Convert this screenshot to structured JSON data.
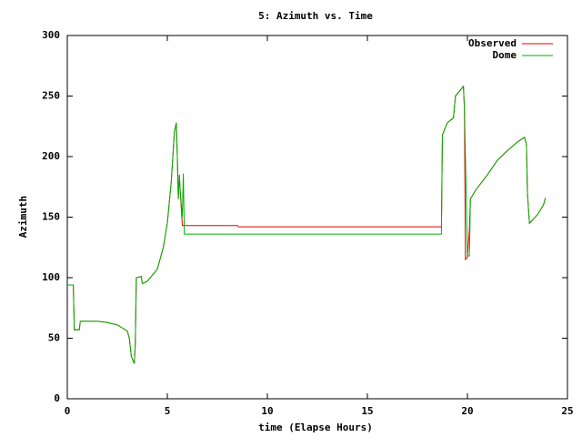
{
  "chart_data": {
    "type": "line",
    "title": "5: Azimuth vs. Time",
    "x_label": "time (Elapse Hours)",
    "y_label": "Azimuth",
    "x": [
      0,
      0.3,
      0.35,
      0.6,
      0.65,
      1.5,
      2.0,
      2.5,
      3.0,
      3.1,
      3.2,
      3.35,
      3.4,
      3.45,
      3.7,
      3.75,
      4.0,
      4.5,
      4.8,
      5.0,
      5.2,
      5.35,
      5.45,
      5.5,
      5.55,
      5.6,
      5.65,
      5.75,
      5.8,
      5.85,
      8.5,
      8.55,
      18.7,
      18.75,
      19.0,
      19.3,
      19.4,
      19.8,
      19.85,
      19.9,
      20.0,
      20.1,
      20.15,
      20.4,
      21.0,
      21.5,
      22.0,
      22.5,
      22.85,
      22.95,
      23.0,
      23.1,
      23.5,
      23.8,
      23.9
    ],
    "series": [
      {
        "name": "Observed",
        "color": "#e00000",
        "values": [
          94,
          94,
          57,
          57,
          64,
          64,
          63,
          61,
          56,
          50,
          35,
          29,
          46,
          100,
          101,
          95,
          97,
          107,
          125,
          145,
          180,
          220,
          228,
          200,
          165,
          185,
          170,
          143,
          143,
          143,
          143,
          142,
          142,
          218,
          228,
          232,
          250,
          258,
          240,
          115,
          117,
          140,
          165,
          172,
          185,
          197,
          205,
          212,
          216,
          210,
          170,
          145,
          152,
          160,
          166
        ]
      },
      {
        "name": "Dome",
        "color": "#00b000",
        "values": [
          94,
          94,
          57,
          57,
          64,
          64,
          63,
          61,
          56,
          50,
          35,
          29,
          46,
          100,
          101,
          95,
          97,
          107,
          125,
          145,
          180,
          220,
          228,
          200,
          165,
          185,
          170,
          150,
          186,
          136,
          136,
          136,
          136,
          218,
          228,
          232,
          250,
          258,
          240,
          200,
          118,
          118,
          165,
          172,
          185,
          197,
          205,
          212,
          216,
          210,
          170,
          145,
          152,
          160,
          166
        ]
      }
    ],
    "xlim": [
      0,
      25
    ],
    "ylim": [
      0,
      300
    ],
    "xticks": [
      0,
      5,
      10,
      15,
      20,
      25
    ],
    "yticks": [
      0,
      50,
      100,
      150,
      200,
      250,
      300
    ],
    "legend": "upper-right"
  }
}
